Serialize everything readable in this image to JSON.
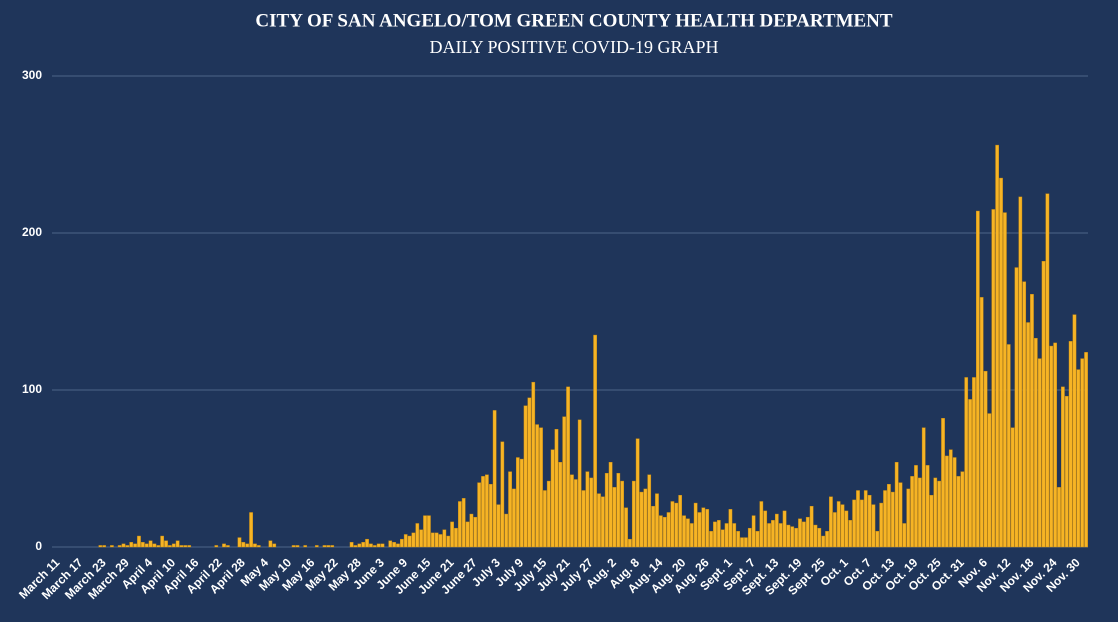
{
  "chart_data": {
    "type": "bar",
    "title": "CITY OF SAN ANGELO/TOM GREEN COUNTY HEALTH DEPARTMENT",
    "subtitle": "DAILY POSITIVE COVID-19 GRAPH",
    "categories": [
      "March 11",
      null,
      null,
      null,
      null,
      null,
      "March 17",
      null,
      null,
      null,
      null,
      null,
      "March 23",
      null,
      null,
      null,
      null,
      null,
      "March 29",
      null,
      null,
      null,
      null,
      null,
      "April 4",
      null,
      null,
      null,
      null,
      null,
      "April 10",
      null,
      null,
      null,
      null,
      null,
      "April 16",
      null,
      null,
      null,
      null,
      null,
      "April 22",
      null,
      null,
      null,
      null,
      null,
      "April 28",
      null,
      null,
      null,
      null,
      null,
      "May 4",
      null,
      null,
      null,
      null,
      null,
      "May 10",
      null,
      null,
      null,
      null,
      null,
      "May 16",
      null,
      null,
      null,
      null,
      null,
      "May 22",
      null,
      null,
      null,
      null,
      null,
      "May 28",
      null,
      null,
      null,
      null,
      null,
      "June 3",
      null,
      null,
      null,
      null,
      null,
      "June 9",
      null,
      null,
      null,
      null,
      null,
      "June 15",
      null,
      null,
      null,
      null,
      null,
      "June 21",
      null,
      null,
      null,
      null,
      null,
      "June 27",
      null,
      null,
      null,
      null,
      null,
      "July 3",
      null,
      null,
      null,
      null,
      null,
      "July 9",
      null,
      null,
      null,
      null,
      null,
      "July 15",
      null,
      null,
      null,
      null,
      null,
      "July 21",
      null,
      null,
      null,
      null,
      null,
      "July 27",
      null,
      null,
      null,
      null,
      null,
      "Aug. 2",
      null,
      null,
      null,
      null,
      null,
      "Aug. 8",
      null,
      null,
      null,
      null,
      null,
      "Aug. 14",
      null,
      null,
      null,
      null,
      null,
      "Aug. 20",
      null,
      null,
      null,
      null,
      null,
      "Aug. 26",
      null,
      null,
      null,
      null,
      null,
      "Sept. 1",
      null,
      null,
      null,
      null,
      null,
      "Sept. 7",
      null,
      null,
      null,
      null,
      null,
      "Sept. 13",
      null,
      null,
      null,
      null,
      null,
      "Sept. 19",
      null,
      null,
      null,
      null,
      null,
      "Sept. 25",
      null,
      null,
      null,
      null,
      null,
      "Oct. 1",
      null,
      null,
      null,
      null,
      null,
      "Oct. 7",
      null,
      null,
      null,
      null,
      null,
      "Oct. 13",
      null,
      null,
      null,
      null,
      null,
      "Oct. 19",
      null,
      null,
      null,
      null,
      null,
      "Oct. 25",
      null,
      null,
      null,
      null,
      null,
      "Oct. 31",
      null,
      null,
      null,
      null,
      null,
      "Nov. 6",
      null,
      null,
      null,
      null,
      null,
      "Nov. 12",
      null,
      null,
      null,
      null,
      null,
      "Nov. 18",
      null,
      null,
      null,
      null,
      null,
      "Nov. 24",
      null,
      null,
      null,
      null,
      null,
      "Nov. 30",
      null,
      null,
      null
    ],
    "values": [
      0,
      0,
      0,
      0,
      0,
      0,
      0,
      0,
      0,
      0,
      0,
      0,
      1,
      1,
      0,
      1,
      0,
      1,
      2,
      1,
      3,
      2,
      7,
      3,
      2,
      4,
      2,
      1,
      7,
      4,
      1,
      2,
      4,
      1,
      1,
      1,
      0,
      0,
      0,
      0,
      0,
      0,
      1,
      0,
      2,
      1,
      0,
      0,
      6,
      3,
      2,
      22,
      2,
      1,
      0,
      0,
      4,
      2,
      0,
      0,
      0,
      0,
      1,
      1,
      0,
      1,
      0,
      0,
      1,
      0,
      1,
      1,
      1,
      0,
      0,
      0,
      0,
      3,
      1,
      2,
      3,
      5,
      2,
      1,
      2,
      2,
      0,
      4,
      3,
      2,
      5,
      8,
      7,
      9,
      15,
      11,
      20,
      20,
      9,
      9,
      8,
      11,
      7,
      16,
      12,
      29,
      31,
      16,
      21,
      19,
      41,
      45,
      46,
      40,
      87,
      27,
      67,
      21,
      48,
      37,
      57,
      56,
      90,
      95,
      105,
      78,
      76,
      36,
      42,
      62,
      75,
      54,
      83,
      102,
      46,
      43,
      81,
      36,
      48,
      44,
      135,
      34,
      32,
      47,
      54,
      38,
      47,
      42,
      25,
      5,
      42,
      69,
      35,
      37,
      46,
      26,
      34,
      20,
      19,
      22,
      29,
      28,
      33,
      20,
      18,
      15,
      28,
      22,
      25,
      24,
      10,
      16,
      17,
      11,
      15,
      24,
      15,
      10,
      6,
      6,
      12,
      20,
      10,
      29,
      23,
      15,
      17,
      21,
      15,
      23,
      14,
      13,
      12,
      18,
      16,
      19,
      26,
      14,
      12,
      7,
      10,
      32,
      22,
      29,
      27,
      23,
      17,
      30,
      36,
      30,
      36,
      33,
      27,
      10,
      28,
      36,
      40,
      35,
      54,
      41,
      15,
      37,
      45,
      52,
      44,
      76,
      52,
      33,
      44,
      42,
      82,
      58,
      62,
      57,
      45,
      48,
      108,
      94,
      108,
      214,
      159,
      112,
      85,
      215,
      256,
      235,
      213,
      129,
      76,
      178,
      223,
      169,
      143,
      161,
      133,
      120,
      182,
      225,
      128,
      130,
      38,
      102,
      96,
      131,
      148,
      113,
      120,
      124
    ],
    "color": "#f6b425",
    "ylim": [
      0,
      300
    ],
    "yticks": [
      0,
      100,
      200,
      300
    ],
    "grid": true
  }
}
